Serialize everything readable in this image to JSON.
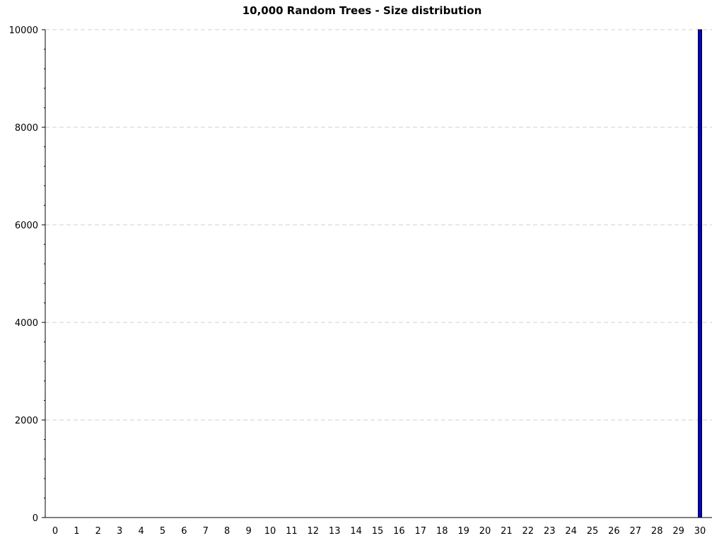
{
  "chart_data": {
    "type": "bar",
    "title": "10,000 Random Trees - Size distribution",
    "xlabel": "",
    "ylabel": "",
    "categories": [
      "0",
      "1",
      "2",
      "3",
      "4",
      "5",
      "6",
      "7",
      "8",
      "9",
      "10",
      "11",
      "12",
      "13",
      "14",
      "15",
      "16",
      "17",
      "18",
      "19",
      "20",
      "21",
      "22",
      "23",
      "24",
      "25",
      "26",
      "27",
      "28",
      "29",
      "30"
    ],
    "values": [
      0,
      0,
      0,
      0,
      0,
      0,
      0,
      0,
      0,
      0,
      0,
      0,
      0,
      0,
      0,
      0,
      0,
      0,
      0,
      0,
      0,
      0,
      0,
      0,
      0,
      0,
      0,
      0,
      0,
      0,
      10000
    ],
    "ylim": [
      0,
      10000
    ],
    "yticks": [
      "0",
      "2000",
      "4000",
      "6000",
      "8000",
      "10000"
    ],
    "grid": "horizontal dashed",
    "bar_color": "#0000cc",
    "bar_outline_color": "#000000",
    "legend": "none"
  }
}
